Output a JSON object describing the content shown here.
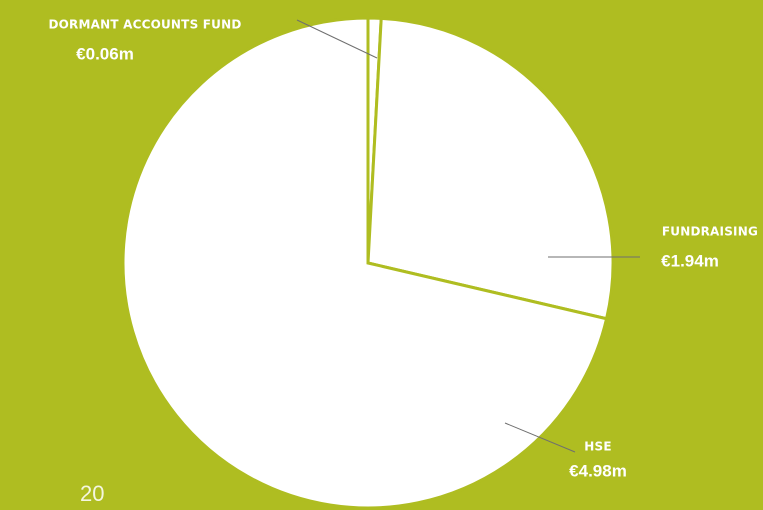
{
  "chart_data": {
    "type": "pie",
    "categories": [
      "DORMANT ACCOUNTS FUND",
      "FUNDRAISING",
      "HSE"
    ],
    "values": [
      0.06,
      1.94,
      4.98
    ],
    "value_labels": [
      "€0.06m",
      "€1.94m",
      "€4.98m"
    ],
    "color": "#ffffff",
    "background": "#afbd21"
  },
  "page_number": "20"
}
